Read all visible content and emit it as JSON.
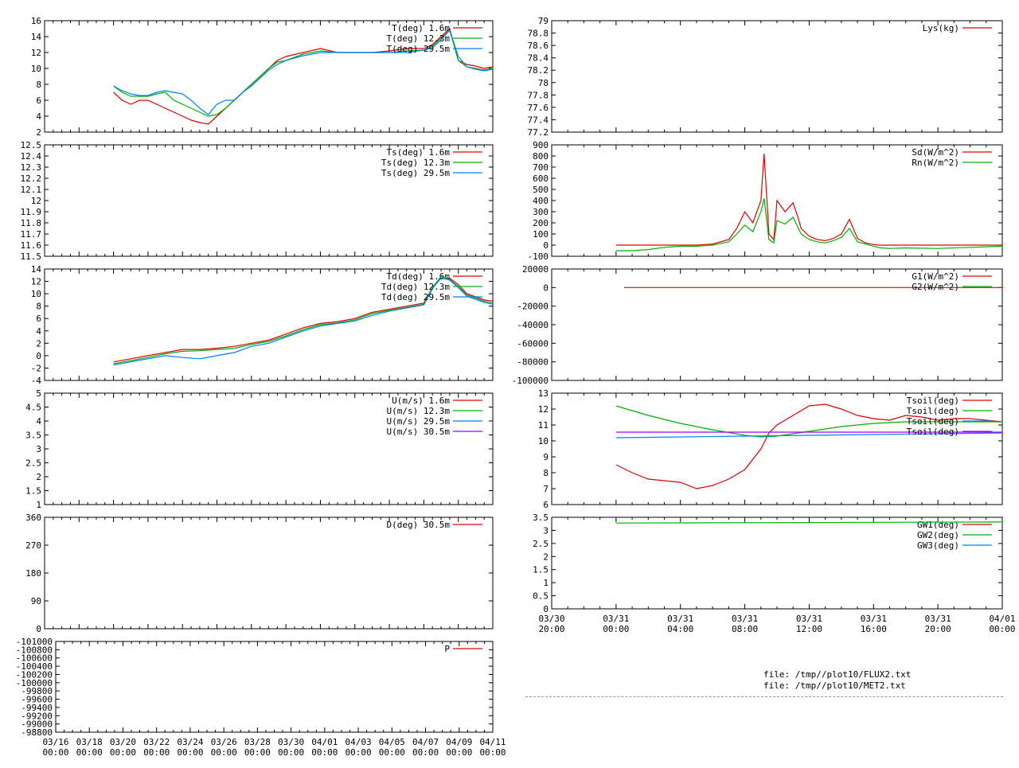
{
  "files": [
    "file: /tmp//plot10/FLUX2.txt",
    "file: /tmp//plot10/MET2.txt"
  ],
  "colors": {
    "red": "#e00000",
    "green": "#00b000",
    "blue": "#0080ff",
    "purple": "#a000ff",
    "black": "#000000"
  },
  "chart_data": [
    {
      "type": "line",
      "ylim": [
        2,
        16
      ],
      "ytick_labels": [
        "2",
        "4",
        "6",
        "8",
        "10",
        "12",
        "14",
        "16"
      ],
      "xlim_days": [
        0,
        26
      ],
      "x_start": "03/16 00:00",
      "series": [
        {
          "name": "T(deg)  1.6m",
          "color": "red",
          "x": [
            4,
            4.5,
            5,
            5.5,
            6,
            6.5,
            7,
            7.5,
            8,
            8.2,
            8.5,
            9,
            9.5,
            10,
            10.5,
            11,
            11.5,
            12,
            12.5,
            13,
            13.5,
            14,
            15,
            16,
            17,
            18,
            19,
            20,
            21,
            22,
            22.5,
            23,
            23.5,
            24,
            24.5,
            25,
            25.5,
            26
          ],
          "y": [
            7,
            6,
            5.5,
            6,
            6,
            5.5,
            5,
            4.5,
            4,
            3.8,
            3.5,
            3.2,
            3,
            4,
            5,
            6,
            7,
            8,
            9,
            10,
            11,
            11.5,
            12,
            12.5,
            12,
            12,
            12,
            12.2,
            12.5,
            12.5,
            13,
            14,
            15,
            11,
            10.5,
            10.3,
            10,
            10.2
          ]
        },
        {
          "name": "T(deg) 12.3m",
          "color": "green",
          "x": [
            4,
            4.5,
            5,
            5.5,
            6,
            6.5,
            7,
            7.5,
            8,
            8.5,
            9,
            9.5,
            10,
            10.5,
            11,
            11.5,
            12,
            12.5,
            13,
            13.5,
            14,
            15,
            16,
            17,
            18,
            19,
            20,
            21,
            22,
            22.5,
            23,
            23.5,
            24,
            24.5,
            25,
            25.5,
            26
          ],
          "y": [
            7.8,
            7,
            6.5,
            6.5,
            6.5,
            6.8,
            7,
            6,
            5.5,
            5,
            4.5,
            4,
            4.2,
            5,
            6,
            7,
            8,
            9,
            10,
            10.8,
            11,
            11.8,
            12.2,
            12,
            12,
            12,
            12,
            12.2,
            12.3,
            12.8,
            13.8,
            14.8,
            11,
            10.2,
            10,
            9.8,
            10
          ]
        },
        {
          "name": "T(deg) 29.5m",
          "color": "blue",
          "x": [
            4,
            4.5,
            5,
            5.5,
            6,
            6.5,
            7,
            7.5,
            8,
            8.5,
            9,
            9.5,
            10,
            10.5,
            11,
            11.5,
            12,
            12.5,
            13,
            13.5,
            14,
            15,
            16,
            17,
            18,
            19,
            20,
            21,
            22,
            22.5,
            23,
            23.5,
            24,
            24.5,
            25,
            25.5,
            26
          ],
          "y": [
            7.8,
            7.2,
            6.8,
            6.6,
            6.6,
            7,
            7.2,
            7,
            6.8,
            6,
            5,
            4.2,
            5.5,
            6,
            6,
            7,
            7.8,
            8.8,
            9.8,
            10.5,
            11,
            11.6,
            12,
            12,
            12,
            12,
            12,
            12,
            12.3,
            12.6,
            13.6,
            14.8,
            11.5,
            10.2,
            9.9,
            9.7,
            9.9
          ]
        }
      ]
    },
    {
      "type": "line",
      "ylim": [
        11.5,
        12.5
      ],
      "ytick_labels": [
        "11.5",
        "11.6",
        "11.7",
        "11.8",
        "11.9",
        "12",
        "12.1",
        "12.2",
        "12.3",
        "12.4",
        "12.5"
      ],
      "xlim_days": [
        0,
        26
      ],
      "series": [
        {
          "name": "Ts(deg)  1.6m",
          "color": "red",
          "x": [],
          "y": []
        },
        {
          "name": "Ts(deg) 12.3m",
          "color": "green",
          "x": [],
          "y": []
        },
        {
          "name": "Ts(deg) 29.5m",
          "color": "blue",
          "x": [],
          "y": []
        }
      ]
    },
    {
      "type": "line",
      "ylim": [
        -4,
        14
      ],
      "ytick_labels": [
        "-4",
        "-2",
        "0",
        "2",
        "4",
        "6",
        "8",
        "10",
        "12",
        "14"
      ],
      "xlim_days": [
        0,
        26
      ],
      "series": [
        {
          "name": "Td(deg)  1.6m",
          "color": "red",
          "x": [
            4,
            5,
            6,
            7,
            8,
            9,
            10,
            11,
            12,
            13,
            14,
            15,
            16,
            17,
            18,
            19,
            20,
            21,
            22,
            22.5,
            23,
            23.5,
            24,
            24.5,
            25,
            25.5,
            26
          ],
          "y": [
            -1,
            -0.5,
            0,
            0.5,
            1,
            1,
            1.2,
            1.5,
            2,
            2.5,
            3.5,
            4.5,
            5.2,
            5.5,
            6,
            7,
            7.5,
            8,
            8.5,
            11,
            12.5,
            12.5,
            11.5,
            10,
            9.5,
            9,
            8.8
          ]
        },
        {
          "name": "Td(deg) 12.3m",
          "color": "green",
          "x": [
            4,
            5,
            6,
            7,
            8,
            9,
            10,
            11,
            12,
            13,
            14,
            15,
            16,
            17,
            18,
            19,
            20,
            21,
            22,
            22.5,
            23,
            23.5,
            24,
            24.5,
            25,
            25.5,
            26
          ],
          "y": [
            -1.3,
            -0.8,
            -0.3,
            0.3,
            0.7,
            0.8,
            1,
            1.2,
            1.8,
            2.3,
            3.2,
            4.2,
            5,
            5.3,
            5.8,
            6.8,
            7.3,
            7.8,
            8.3,
            11,
            12.8,
            12.3,
            11.2,
            9.8,
            9.3,
            8.8,
            8.5
          ]
        },
        {
          "name": "Td(deg) 29.5m",
          "color": "blue",
          "x": [
            4,
            5,
            6,
            7,
            8,
            9,
            10,
            11,
            12,
            13,
            14,
            15,
            16,
            17,
            18,
            19,
            20,
            21,
            22,
            22.5,
            23,
            23.5,
            24,
            24.5,
            25,
            25.5,
            26
          ],
          "y": [
            -1.5,
            -1,
            -0.5,
            0,
            -0.3,
            -0.5,
            0,
            0.5,
            1.5,
            2,
            3,
            4,
            4.8,
            5.2,
            5.6,
            6.5,
            7.2,
            7.7,
            8.2,
            10.8,
            12.6,
            12.2,
            11,
            9.6,
            9.1,
            8.6,
            8.3
          ]
        }
      ]
    },
    {
      "type": "line",
      "ylim": [
        1,
        5
      ],
      "ytick_labels": [
        "1",
        "1.5",
        "2",
        "2.5",
        "3",
        "3.5",
        "4",
        "4.5",
        "5"
      ],
      "xlim_days": [
        0,
        26
      ],
      "series": [
        {
          "name": "U(m/s)  1.6m",
          "color": "red",
          "x": [],
          "y": []
        },
        {
          "name": "U(m/s) 12.3m",
          "color": "green",
          "x": [],
          "y": []
        },
        {
          "name": "U(m/s) 29.5m",
          "color": "blue",
          "x": [],
          "y": []
        },
        {
          "name": "U(m/s) 30.5m",
          "color": "purple",
          "x": [],
          "y": []
        }
      ]
    },
    {
      "type": "line",
      "ylim": [
        0,
        360
      ],
      "ytick_labels": [
        "0",
        "90",
        "180",
        "270",
        "360"
      ],
      "xlim_days": [
        0,
        26
      ],
      "series": [
        {
          "name": "D(deg)  30.5m",
          "color": "red",
          "x": [],
          "y": []
        }
      ]
    },
    {
      "type": "line",
      "ylim": [
        -98800,
        -101000
      ],
      "ytick_labels": [
        "-98800",
        "-99000",
        "-99200",
        "-99400",
        "-99600",
        "-99800",
        "-100000",
        "-100200",
        "-100400",
        "-100600",
        "-100800",
        "-101000"
      ],
      "xlim_days": [
        0,
        26
      ],
      "xtick_labels": [
        [
          "03/16",
          "00:00"
        ],
        [
          "03/18",
          "00:00"
        ],
        [
          "03/20",
          "00:00"
        ],
        [
          "03/22",
          "00:00"
        ],
        [
          "03/24",
          "00:00"
        ],
        [
          "03/26",
          "00:00"
        ],
        [
          "03/28",
          "00:00"
        ],
        [
          "03/30",
          "00:00"
        ],
        [
          "04/01",
          "00:00"
        ],
        [
          "04/03",
          "00:00"
        ],
        [
          "04/05",
          "00:00"
        ],
        [
          "04/07",
          "00:00"
        ],
        [
          "04/09",
          "00:00"
        ],
        [
          "04/11",
          "00:00"
        ]
      ],
      "series": [
        {
          "name": "P",
          "color": "red",
          "x": [],
          "y": []
        }
      ]
    },
    {
      "type": "line",
      "ylim": [
        77.2,
        79
      ],
      "ytick_labels": [
        "77.2",
        "77.4",
        "77.6",
        "77.8",
        "78",
        "78.2",
        "78.4",
        "78.6",
        "78.8",
        "79"
      ],
      "xlim_hours": [
        0,
        28
      ],
      "series": [
        {
          "name": "Lys(kg)",
          "color": "red",
          "x": [],
          "y": []
        }
      ]
    },
    {
      "type": "line",
      "ylim": [
        -100,
        900
      ],
      "ytick_labels": [
        "-100",
        "0",
        "100",
        "200",
        "300",
        "400",
        "500",
        "600",
        "700",
        "800",
        "900"
      ],
      "xlim_hours": [
        0,
        28
      ],
      "series": [
        {
          "name": "Sd(W/m^2)",
          "color": "red",
          "x": [
            4,
            6,
            8,
            9,
            10,
            11,
            11.5,
            12,
            12.5,
            13,
            13.2,
            13.5,
            13.8,
            14,
            14.5,
            15,
            15.3,
            15.5,
            16,
            16.5,
            17,
            17.5,
            18,
            18.5,
            19,
            19.5,
            20,
            20.3,
            20.5,
            21,
            22,
            24,
            26,
            28
          ],
          "y": [
            0,
            0,
            0,
            0,
            10,
            50,
            150,
            300,
            200,
            400,
            820,
            100,
            50,
            400,
            300,
            380,
            250,
            150,
            80,
            50,
            40,
            60,
            100,
            230,
            60,
            20,
            5,
            0,
            0,
            0,
            0,
            0,
            0,
            0
          ]
        },
        {
          "name": "Rn(W/m^2)",
          "color": "green",
          "x": [
            4,
            5,
            6,
            7,
            8,
            9,
            10,
            11,
            11.5,
            12,
            12.5,
            13,
            13.2,
            13.5,
            13.8,
            14,
            14.5,
            15,
            15.3,
            15.5,
            16,
            16.5,
            17,
            17.5,
            18,
            18.5,
            19,
            19.5,
            20,
            20.3,
            20.5,
            21,
            22,
            24,
            26,
            28
          ],
          "y": [
            -50,
            -50,
            -40,
            -20,
            -10,
            -10,
            0,
            30,
            100,
            180,
            120,
            300,
            420,
            50,
            20,
            220,
            190,
            250,
            160,
            100,
            50,
            30,
            20,
            40,
            70,
            150,
            30,
            10,
            -10,
            -20,
            -25,
            -30,
            -25,
            -30,
            -20,
            -10
          ]
        }
      ]
    },
    {
      "type": "line",
      "ylim": [
        -100000,
        20000
      ],
      "ytick_labels": [
        "-100000",
        "-80000",
        "-60000",
        "-40000",
        "-20000",
        "0",
        "20000"
      ],
      "xlim_hours": [
        0,
        28
      ],
      "series": [
        {
          "name": "G1(W/m^2)",
          "color": "red",
          "x": [
            4.5,
            28
          ],
          "y": [
            0,
            0
          ]
        },
        {
          "name": "G2(W/m^2)",
          "color": "green",
          "x": [],
          "y": []
        }
      ]
    },
    {
      "type": "line",
      "ylim": [
        6,
        13
      ],
      "ytick_labels": [
        "6",
        "7",
        "8",
        "9",
        "10",
        "11",
        "12",
        "13"
      ],
      "xlim_hours": [
        0,
        28
      ],
      "series": [
        {
          "name": "Tsoil(deg)",
          "color": "red",
          "x": [
            4,
            5,
            6,
            7,
            8,
            9,
            10,
            11,
            12,
            13,
            13.5,
            14,
            15,
            16,
            17,
            18,
            19,
            20,
            21,
            22,
            23,
            24,
            25,
            26,
            27,
            28
          ],
          "y": [
            8.5,
            8,
            7.6,
            7.5,
            7.4,
            7,
            7.2,
            7.6,
            8.2,
            9.5,
            10.5,
            11,
            11.6,
            12.2,
            12.3,
            12,
            11.6,
            11.4,
            11.3,
            11.6,
            11.5,
            11.3,
            11.4,
            11.4,
            11.3,
            11.2
          ]
        },
        {
          "name": "Tsoil(deg)",
          "color": "green",
          "x": [
            4,
            6,
            8,
            10,
            12,
            13,
            14,
            16,
            18,
            20,
            22,
            24,
            26,
            28
          ],
          "y": [
            12.2,
            11.6,
            11.1,
            10.7,
            10.35,
            10.25,
            10.3,
            10.6,
            10.9,
            11.1,
            11.2,
            11.2,
            11.2,
            11.2
          ]
        },
        {
          "name": "Tsoil(deg)",
          "color": "blue",
          "x": [
            4,
            8,
            12,
            16,
            20,
            24,
            28
          ],
          "y": [
            10.2,
            10.25,
            10.3,
            10.35,
            10.4,
            10.45,
            10.5
          ]
        },
        {
          "name": "Tsoil(deg)",
          "color": "purple",
          "x": [
            4,
            28
          ],
          "y": [
            10.55,
            10.55
          ]
        }
      ]
    },
    {
      "type": "line",
      "ylim": [
        0,
        3.5
      ],
      "ytick_labels": [
        "0",
        "0.5",
        "1",
        "1.5",
        "2",
        "2.5",
        "3",
        "3.5"
      ],
      "xlim_hours": [
        0,
        28
      ],
      "xtick_labels": [
        [
          "03/30",
          "20:00"
        ],
        [
          "03/31",
          "00:00"
        ],
        [
          "03/31",
          "04:00"
        ],
        [
          "03/31",
          "08:00"
        ],
        [
          "03/31",
          "12:00"
        ],
        [
          "03/31",
          "16:00"
        ],
        [
          "03/31",
          "20:00"
        ],
        [
          "04/01",
          "00:00"
        ]
      ],
      "series": [
        {
          "name": "GW1(deg)",
          "color": "red",
          "x": [],
          "y": []
        },
        {
          "name": "GW2(deg)",
          "color": "green",
          "x": [
            4,
            28
          ],
          "y": [
            3.28,
            3.32
          ]
        },
        {
          "name": "GW3(deg)",
          "color": "blue",
          "x": [],
          "y": []
        }
      ]
    }
  ]
}
